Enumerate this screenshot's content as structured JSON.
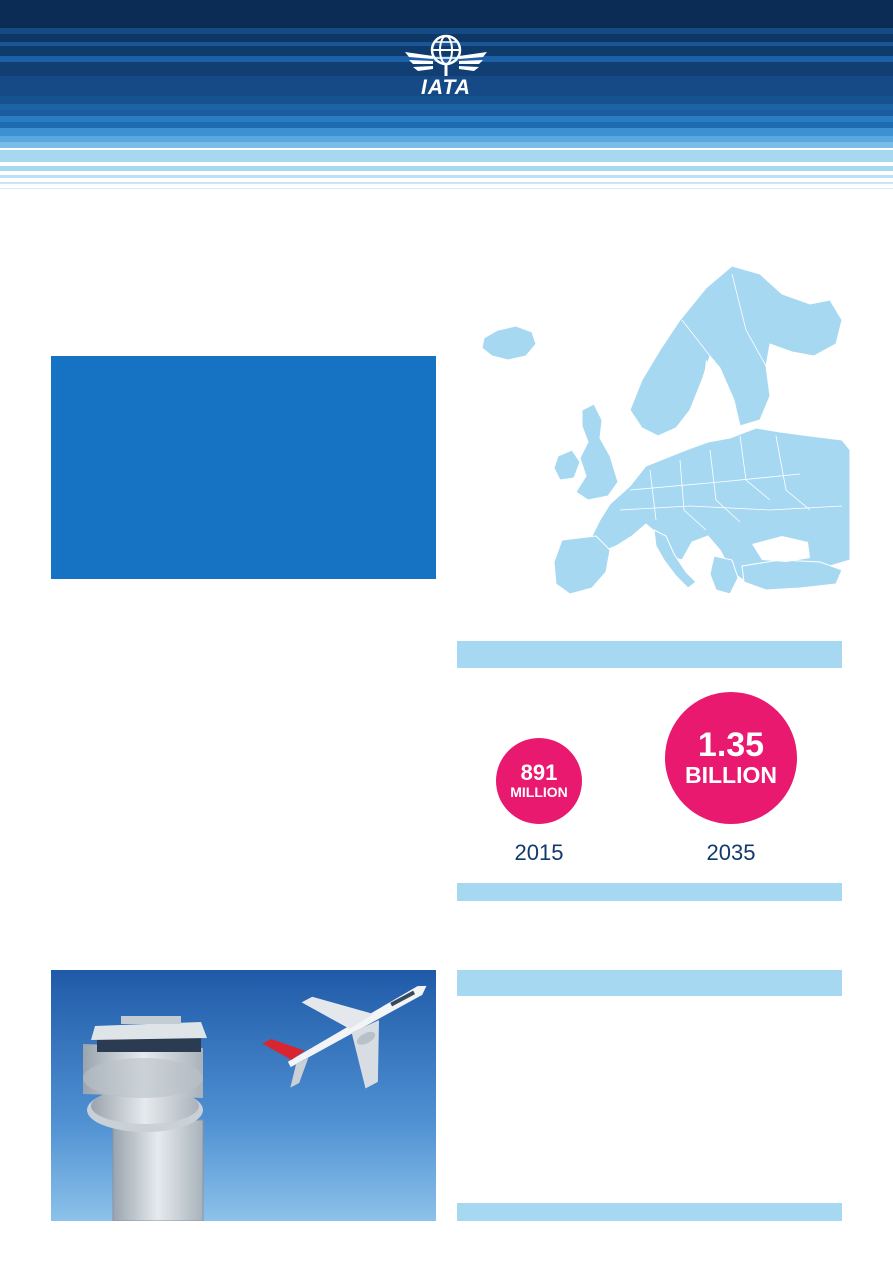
{
  "header": {
    "logo_text": "IATA",
    "colors": {
      "dark_navy": "#0b2c55",
      "mid_blue": "#1d63a8",
      "light_blue": "#a7d8f2"
    }
  },
  "infographic": {
    "stats": [
      {
        "value": "891",
        "unit": "MILLION",
        "year": "2015"
      },
      {
        "value": "1.35",
        "unit": "BILLION",
        "year": "2035"
      }
    ],
    "accent_color": "#e8196f",
    "text_color": "#123a6b"
  },
  "map": {
    "icon": "europe-map-icon",
    "fill": "#a7d8f2"
  },
  "photo": {
    "icon": "control-tower-airplane-image"
  }
}
